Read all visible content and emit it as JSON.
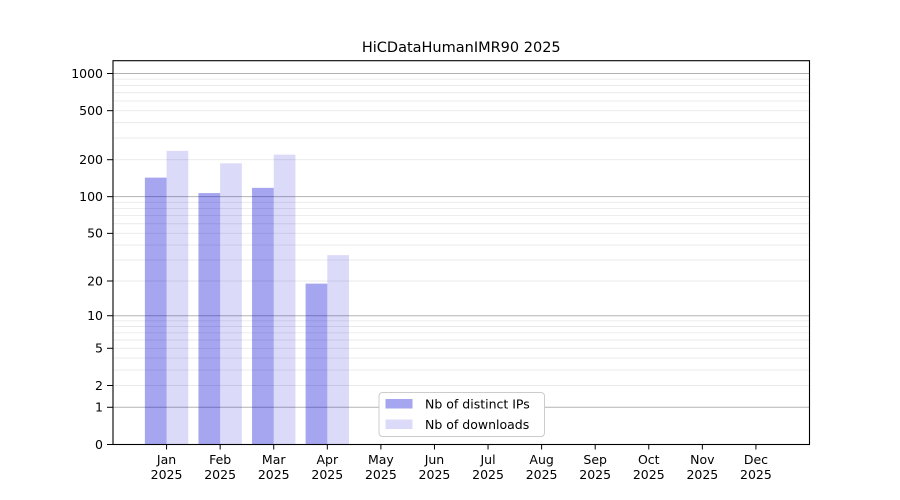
{
  "chart_data": {
    "type": "bar",
    "title": "HiCDataHumanIMR90 2025",
    "y_scale": "log1p",
    "ylim": [
      0,
      1000
    ],
    "y_ticks": [
      0,
      1,
      2,
      5,
      10,
      20,
      50,
      100,
      200,
      500,
      1000
    ],
    "y_grid_major": [
      1,
      10,
      100,
      1000
    ],
    "y_grid_minor": [
      2,
      3,
      4,
      5,
      6,
      7,
      8,
      9,
      20,
      30,
      40,
      50,
      60,
      70,
      80,
      90,
      200,
      300,
      400,
      500,
      600,
      700,
      800,
      900
    ],
    "categories": [
      "Jan",
      "Feb",
      "Mar",
      "Apr",
      "May",
      "Jun",
      "Jul",
      "Aug",
      "Sep",
      "Oct",
      "Nov",
      "Dec"
    ],
    "year_label": "2025",
    "series": [
      {
        "name": "Nb of distinct IPs",
        "color": "rgba(0,0,211,0.35)",
        "values": [
          143,
          107,
          118,
          19,
          0,
          0,
          0,
          0,
          0,
          0,
          0,
          0
        ]
      },
      {
        "name": "Nb of downloads",
        "color": "rgba(0,0,211,0.14)",
        "values": [
          236,
          187,
          220,
          33,
          0,
          0,
          0,
          0,
          0,
          0,
          0,
          0
        ]
      }
    ],
    "legend": {
      "position": "inside-bottom-center",
      "background": "#ffffff",
      "border_color": "#cccccc"
    },
    "grid": {
      "major_color": "#b3b3b3",
      "minor_color": "#e9e9e9"
    },
    "axis_color": "#000000",
    "background_color": "#ffffff"
  }
}
